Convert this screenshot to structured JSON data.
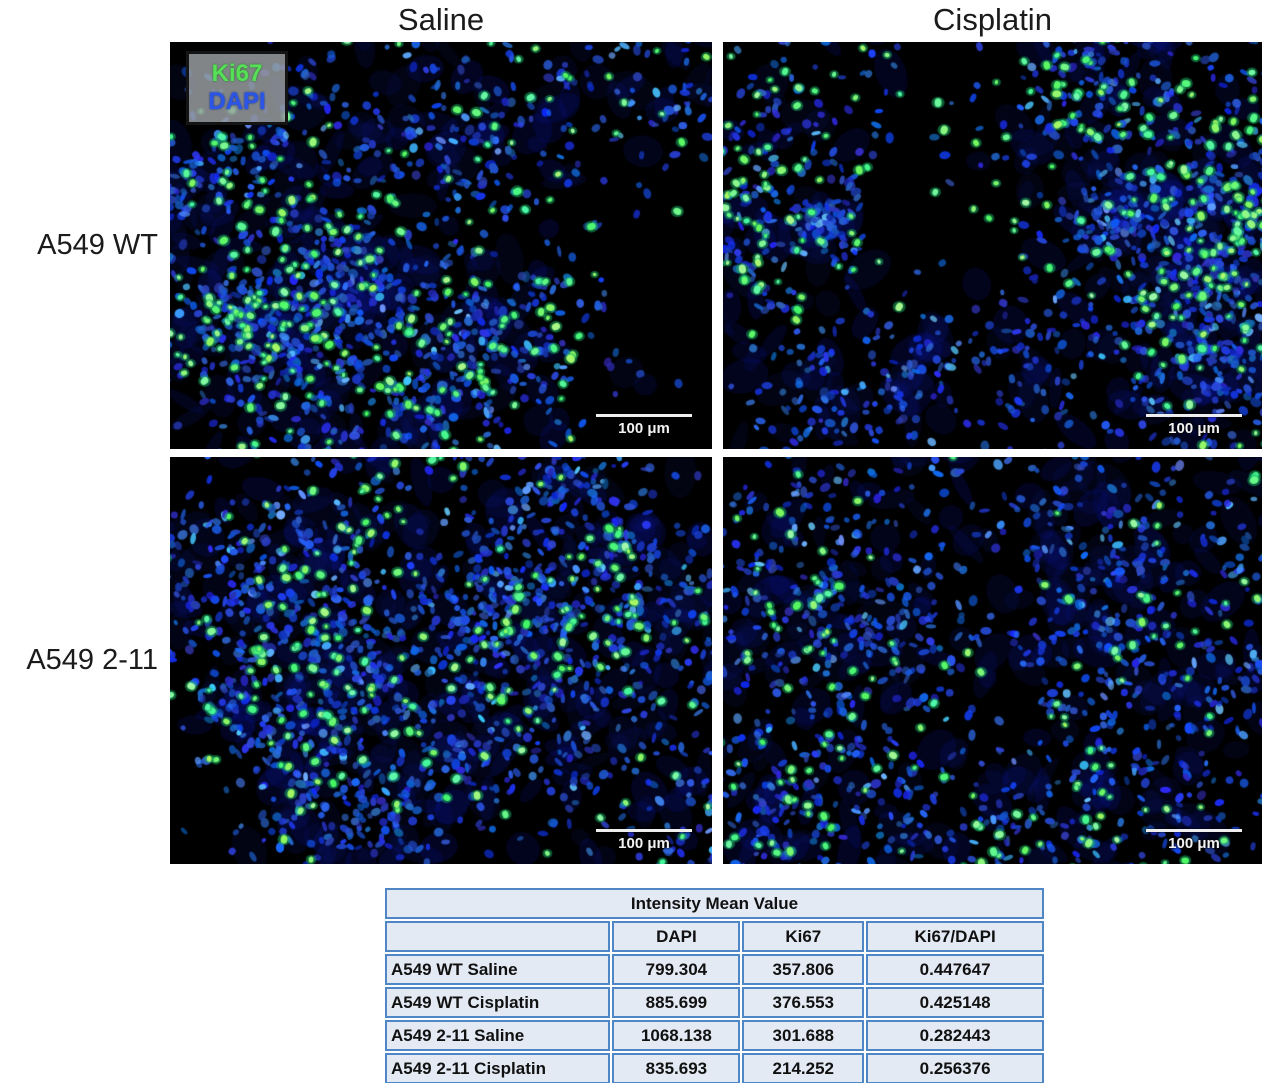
{
  "figure": {
    "column_titles": [
      "Saline",
      "Cisplatin"
    ],
    "row_labels": [
      "A549 WT",
      "A549 2-11"
    ],
    "legend": {
      "ki67_label": "Ki67",
      "dapi_label": "DAPI",
      "ki67_color": "#55e055",
      "dapi_color": "#2b55e6"
    },
    "scale_bar_label": "100 μm",
    "stain_colors": {
      "dapi_signal": "#1e46d8",
      "ki67_signal": "#52e87d",
      "background": "#000000"
    },
    "panels": [
      {
        "name": "a549-wt-saline",
        "row": "A549 WT",
        "column": "Saline"
      },
      {
        "name": "a549-wt-cisplatin",
        "row": "A549 WT",
        "column": "Cisplatin"
      },
      {
        "name": "a549-2-11-saline",
        "row": "A549 2-11",
        "column": "Saline"
      },
      {
        "name": "a549-2-11-cisplatin",
        "row": "A549 2-11",
        "column": "Cisplatin"
      }
    ]
  },
  "chart_data": {
    "type": "table",
    "title": "Intensity Mean Value",
    "columns": [
      "",
      "DAPI",
      "Ki67",
      "Ki67/DAPI"
    ],
    "rows": [
      {
        "label": "A549 WT Saline",
        "values": [
          799.304,
          357.806,
          0.447647
        ]
      },
      {
        "label": "A549 WT Cisplatin",
        "values": [
          885.699,
          376.553,
          0.425148
        ]
      },
      {
        "label": "A549 2-11 Saline",
        "values": [
          1068.138,
          301.688,
          0.282443
        ]
      },
      {
        "label": "A549 2-11 Cisplatin",
        "values": [
          835.693,
          214.252,
          0.256376
        ]
      }
    ],
    "table_style": {
      "border_color": "#4f86c6",
      "fill_color": "#e4eaf4"
    }
  }
}
